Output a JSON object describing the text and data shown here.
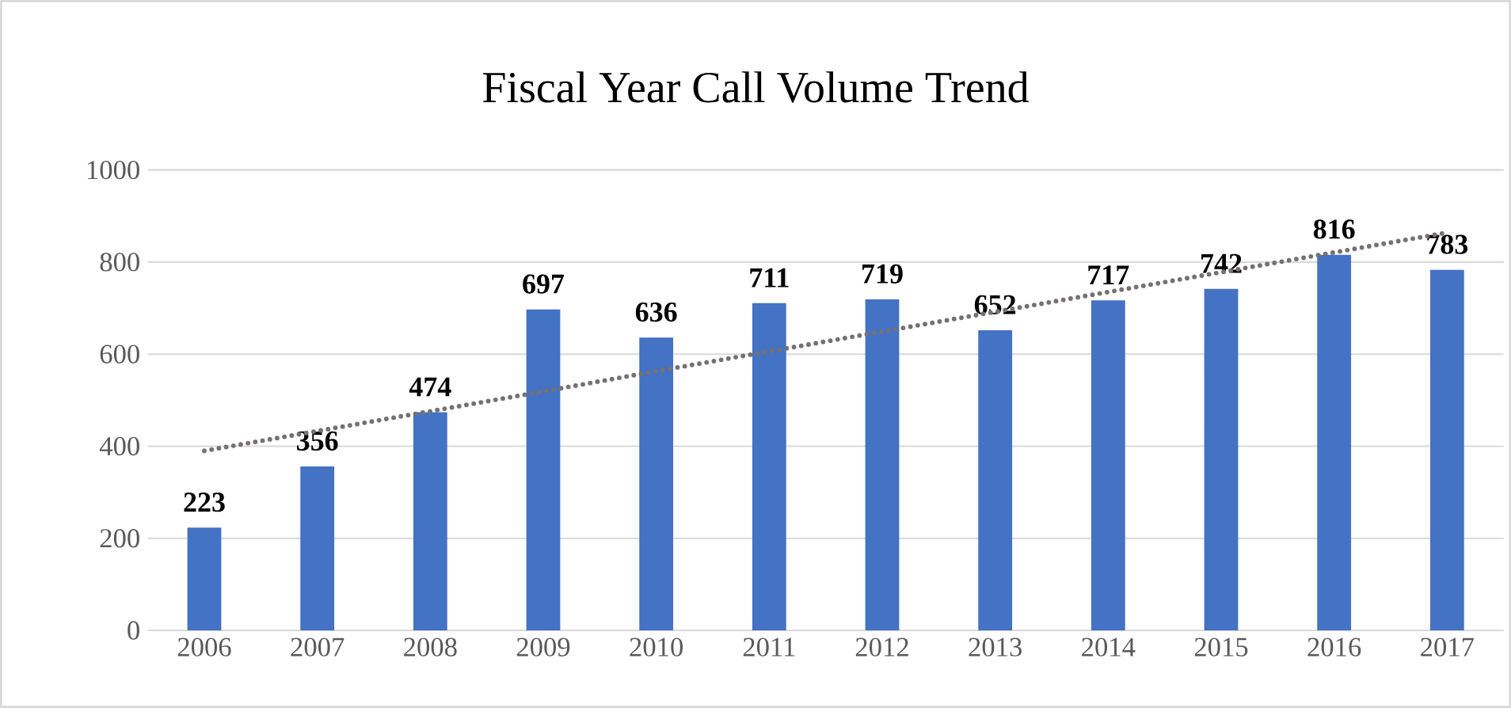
{
  "chart_data": {
    "type": "bar",
    "title": "Fiscal Year Call Volume Trend",
    "categories": [
      "2006",
      "2007",
      "2008",
      "2009",
      "2010",
      "2011",
      "2012",
      "2013",
      "2014",
      "2015",
      "2016",
      "2017"
    ],
    "series": [
      {
        "color": "#4472c4",
        "values": [
          223,
          356,
          474,
          697,
          636,
          711,
          719,
          652,
          717,
          742,
          816,
          783
        ],
        "value_labels": [
          "223",
          "356",
          "474",
          "697",
          "636",
          "711",
          "719",
          "652",
          "717",
          "742",
          "816",
          "783"
        ]
      },
      {
        "type": "line",
        "color": "#767171",
        "line_style": "dotted",
        "values": [
          390,
          433,
          476,
          519,
          563,
          606,
          649,
          692,
          735,
          778,
          821,
          864
        ]
      }
    ],
    "ylim": [
      0,
      1000
    ],
    "yticks": [
      0,
      200,
      400,
      600,
      800,
      1000
    ],
    "grid": "y"
  }
}
